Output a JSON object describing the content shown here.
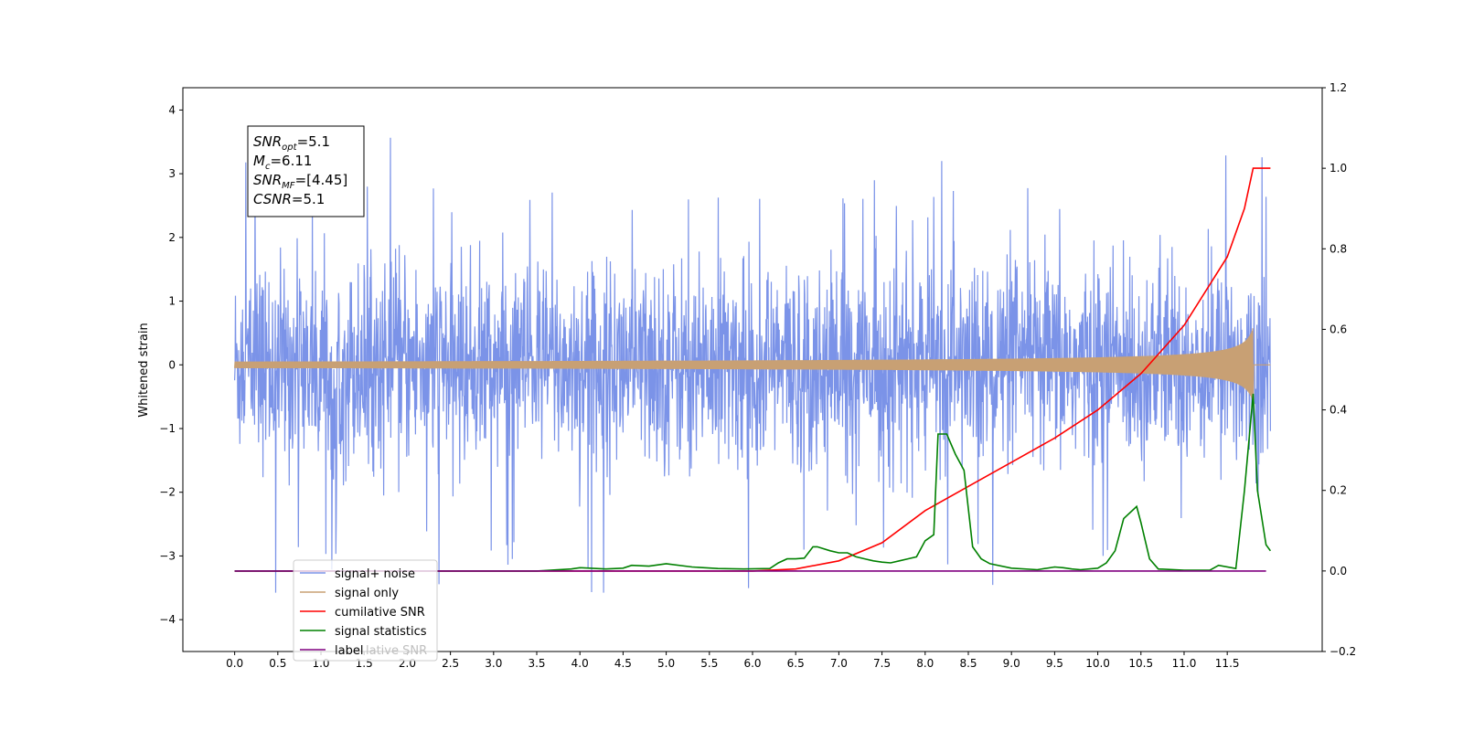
{
  "chart_data": {
    "type": "line",
    "title": "",
    "xlabel": "",
    "ylabel": "Whitened strain",
    "y2label": "",
    "xlim": [
      -0.6,
      12.6
    ],
    "ylim": [
      -4.5,
      4.35
    ],
    "y2lim": [
      -0.2,
      1.2
    ],
    "x_ticks": [
      "0.0",
      "0.5",
      "1.0",
      "1.5",
      "2.0",
      "2.5",
      "3.0",
      "3.5",
      "4.0",
      "4.5",
      "5.0",
      "5.5",
      "6.0",
      "6.5",
      "7.0",
      "7.5",
      "8.0",
      "8.5",
      "9.0",
      "9.5",
      "10.0",
      "10.5",
      "11.0",
      "11.5"
    ],
    "y_ticks": [
      "4",
      "3",
      "2",
      "1",
      "0",
      "−1",
      "−2",
      "−3",
      "−4"
    ],
    "y2_ticks": [
      "1.2",
      "1.0",
      "0.8",
      "0.6",
      "0.4",
      "0.2",
      "0.0",
      "−0.2"
    ],
    "grid": false,
    "legend_position": "lower-left",
    "annotation": {
      "lines": [
        {
          "name": "SNR",
          "sub": "opt",
          "value": "=5.1"
        },
        {
          "name": "M",
          "sub": "c",
          "value": "=6.11"
        },
        {
          "name": "SNR",
          "sub": "MF",
          "value": "=[4.45]"
        },
        {
          "name": "CSNR",
          "sub": "",
          "value": "=5.1"
        }
      ]
    },
    "series": [
      {
        "name": "signal+ noise",
        "color": "#7b93e8",
        "axis": "left",
        "style": "noise",
        "x_range": [
          0.0,
          12.0
        ],
        "amplitude_typical": 1.0,
        "peak": 3.95
      },
      {
        "name": "signal only",
        "color": "#c8a074",
        "axis": "left",
        "style": "chirp",
        "x_range": [
          0.0,
          11.8
        ],
        "peak_amplitude": 0.6
      },
      {
        "name": "cumilative SNR",
        "color": "#ff0000",
        "axis": "right",
        "x": [
          0.0,
          6.0,
          6.5,
          7.0,
          7.5,
          8.0,
          8.5,
          9.0,
          9.5,
          10.0,
          10.5,
          11.0,
          11.5,
          11.7,
          11.8,
          12.0
        ],
        "values": [
          0.0,
          0.0,
          0.005,
          0.025,
          0.07,
          0.15,
          0.21,
          0.27,
          0.33,
          0.4,
          0.49,
          0.61,
          0.78,
          0.9,
          1.0,
          1.0
        ]
      },
      {
        "name": "signal statistics",
        "color": "#008000",
        "axis": "right",
        "x": [
          0.0,
          3.5,
          3.9,
          4.0,
          4.3,
          4.5,
          4.6,
          4.8,
          5.0,
          5.3,
          5.6,
          5.9,
          6.2,
          6.3,
          6.4,
          6.5,
          6.6,
          6.7,
          6.75,
          6.9,
          7.0,
          7.1,
          7.2,
          7.3,
          7.4,
          7.5,
          7.6,
          7.7,
          7.8,
          7.9,
          8.0,
          8.1,
          8.15,
          8.25,
          8.35,
          8.45,
          8.55,
          8.65,
          8.75,
          9.0,
          9.3,
          9.5,
          9.6,
          9.7,
          9.8,
          10.0,
          10.1,
          10.2,
          10.3,
          10.45,
          10.5,
          10.6,
          10.7,
          11.0,
          11.3,
          11.4,
          11.6,
          11.7,
          11.8,
          11.85,
          11.95,
          12.0
        ],
        "values": [
          0.0,
          0.0,
          0.005,
          0.008,
          0.005,
          0.007,
          0.014,
          0.012,
          0.018,
          0.01,
          0.006,
          0.005,
          0.006,
          0.02,
          0.03,
          0.03,
          0.032,
          0.06,
          0.06,
          0.05,
          0.045,
          0.045,
          0.035,
          0.03,
          0.025,
          0.022,
          0.02,
          0.025,
          0.03,
          0.035,
          0.075,
          0.09,
          0.34,
          0.34,
          0.29,
          0.25,
          0.06,
          0.03,
          0.018,
          0.007,
          0.003,
          0.01,
          0.008,
          0.005,
          0.003,
          0.007,
          0.02,
          0.05,
          0.13,
          0.16,
          0.12,
          0.03,
          0.005,
          0.002,
          0.002,
          0.014,
          0.006,
          0.2,
          0.44,
          0.2,
          0.065,
          0.05
        ]
      },
      {
        "name": "label",
        "color": "#800080",
        "axis": "right",
        "x": [
          0.0,
          11.95
        ],
        "values": [
          0.0,
          0.0
        ]
      }
    ],
    "legend_hidden_text": "lative SNR"
  }
}
